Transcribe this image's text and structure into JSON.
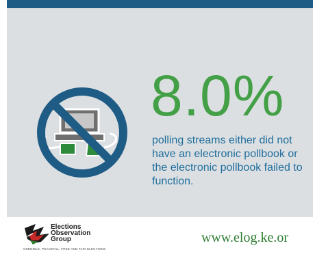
{
  "statistic": "8.0%",
  "description": "polling streams either did not have an electronic pollbook or the electronic pollbook failed to function.",
  "logo": {
    "line1": "Elections",
    "line2": "Observation",
    "line3": "Group",
    "tagline": "CREDIBLE, PEACEFUL, FREE AND FAIR ELECTIONS"
  },
  "website": "www.elog.ke.or",
  "icon": "no-electronic-pollbook-icon",
  "colors": {
    "top_bar": "#1f5c85",
    "panel": "#dcdfe2",
    "statistic": "#43a047",
    "description": "#1f6e9c",
    "prohibition_sign": "#1f5c85",
    "website": "#2e7d32"
  }
}
